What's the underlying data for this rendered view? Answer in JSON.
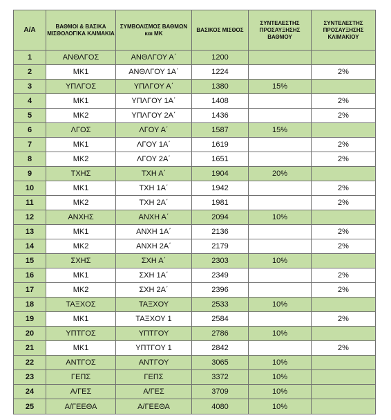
{
  "headers": {
    "aa": "Α/Α",
    "grade": "ΒΑΘΜΟΙ & ΒΑΣΙΚΑ ΜΙΣΘΟΛΟΓΙΚΑ ΚΛΙΜΑΚΙΑ",
    "symbol": "ΣΥΜΒΟΛΙΣΜΟΣ ΒΑΘΜΩΝ και ΜΚ",
    "salary": "ΒΑΣΙΚΟΣ ΜΙΣΘΟΣ",
    "grade_coef": "ΣΥΝΤΕΛΕΣΤΗΣ ΠΡΟΣΑΥΞΗΣΗΣ ΒΑΘΜΟΥ",
    "step_coef": "ΣΥΝΤΕΛΕΣΤΗΣ ΠΡΟΣΑΥΞΗΣΗΣ ΚΛΙΜΑΚΙΟΥ"
  },
  "rows": [
    {
      "n": "1",
      "grade": "ΑΝΘΛΓΟΣ",
      "symbol": "ΑΝΘΛΓΟΥ Α΄",
      "salary": "1200",
      "gc": "",
      "sc": "",
      "green": true
    },
    {
      "n": "2",
      "grade": "ΜΚ1",
      "symbol": "ΑΝΘΛΓΟΥ 1Α΄",
      "salary": "1224",
      "gc": "",
      "sc": "2%",
      "green": false
    },
    {
      "n": "3",
      "grade": "ΥΠΛΓΟΣ",
      "symbol": "ΥΠΛΓΟΥ Α΄",
      "salary": "1380",
      "gc": "15%",
      "sc": "",
      "green": true
    },
    {
      "n": "4",
      "grade": "ΜΚ1",
      "symbol": "ΥΠΛΓΟΥ 1Α΄",
      "salary": "1408",
      "gc": "",
      "sc": "2%",
      "green": false
    },
    {
      "n": "5",
      "grade": "ΜΚ2",
      "symbol": "ΥΠΛΓΟΥ 2Α΄",
      "salary": "1436",
      "gc": "",
      "sc": "2%",
      "green": false
    },
    {
      "n": "6",
      "grade": "ΛΓΟΣ",
      "symbol": "ΛΓΟΥ Α΄",
      "salary": "1587",
      "gc": "15%",
      "sc": "",
      "green": true
    },
    {
      "n": "7",
      "grade": "ΜΚ1",
      "symbol": "ΛΓΟΥ 1Α΄",
      "salary": "1619",
      "gc": "",
      "sc": "2%",
      "green": false
    },
    {
      "n": "8",
      "grade": "ΜΚ2",
      "symbol": "ΛΓΟΥ 2Α΄",
      "salary": "1651",
      "gc": "",
      "sc": "2%",
      "green": false
    },
    {
      "n": "9",
      "grade": "ΤΧΗΣ",
      "symbol": "ΤΧΗ Α΄",
      "salary": "1904",
      "gc": "20%",
      "sc": "",
      "green": true
    },
    {
      "n": "10",
      "grade": "ΜΚ1",
      "symbol": "ΤΧΗ 1Α΄",
      "salary": "1942",
      "gc": "",
      "sc": "2%",
      "green": false
    },
    {
      "n": "11",
      "grade": "ΜΚ2",
      "symbol": "ΤΧΗ 2Α΄",
      "salary": "1981",
      "gc": "",
      "sc": "2%",
      "green": false
    },
    {
      "n": "12",
      "grade": "ΑΝΧΗΣ",
      "symbol": "ΑΝΧΗ Α΄",
      "salary": "2094",
      "gc": "10%",
      "sc": "",
      "green": true
    },
    {
      "n": "13",
      "grade": "ΜΚ1",
      "symbol": "ΑΝΧΗ 1Α΄",
      "salary": "2136",
      "gc": "",
      "sc": "2%",
      "green": false
    },
    {
      "n": "14",
      "grade": "ΜΚ2",
      "symbol": "ΑΝΧΗ 2Α΄",
      "salary": "2179",
      "gc": "",
      "sc": "2%",
      "green": false
    },
    {
      "n": "15",
      "grade": "ΣΧΗΣ",
      "symbol": "ΣΧΗ Α΄",
      "salary": "2303",
      "gc": "10%",
      "sc": "",
      "green": true
    },
    {
      "n": "16",
      "grade": "ΜΚ1",
      "symbol": "ΣΧΗ 1Α΄",
      "salary": "2349",
      "gc": "",
      "sc": "2%",
      "green": false
    },
    {
      "n": "17",
      "grade": "ΜΚ2",
      "symbol": "ΣΧΗ 2Α΄",
      "salary": "2396",
      "gc": "",
      "sc": "2%",
      "green": false
    },
    {
      "n": "18",
      "grade": "ΤΑΞΧΟΣ",
      "symbol": "ΤΑΞΧΟΥ",
      "salary": "2533",
      "gc": "10%",
      "sc": "",
      "green": true
    },
    {
      "n": "19",
      "grade": "ΜΚ1",
      "symbol": "ΤΑΞΧΟΥ 1",
      "salary": "2584",
      "gc": "",
      "sc": "2%",
      "green": false
    },
    {
      "n": "20",
      "grade": "ΥΠΤΓΟΣ",
      "symbol": "ΥΠΤΓΟΥ",
      "salary": "2786",
      "gc": "10%",
      "sc": "",
      "green": true
    },
    {
      "n": "21",
      "grade": "ΜΚ1",
      "symbol": "ΥΠΤΓΟΥ 1",
      "salary": "2842",
      "gc": "",
      "sc": "2%",
      "green": false
    },
    {
      "n": "22",
      "grade": "ΑΝΤΓΟΣ",
      "symbol": "ΑΝΤΓΟΥ",
      "salary": "3065",
      "gc": "10%",
      "sc": "",
      "green": true
    },
    {
      "n": "23",
      "grade": "ΓΕΠΣ",
      "symbol": "ΓΕΠΣ",
      "salary": "3372",
      "gc": "10%",
      "sc": "",
      "green": true
    },
    {
      "n": "24",
      "grade": "Α/ΓΕΣ",
      "symbol": "Α/ΓΕΣ",
      "salary": "3709",
      "gc": "10%",
      "sc": "",
      "green": true
    },
    {
      "n": "25",
      "grade": "Α/ΓΕΕΘΑ",
      "symbol": "Α/ΓΕΕΘΑ",
      "salary": "4080",
      "gc": "10%",
      "sc": "",
      "green": true
    }
  ],
  "colors": {
    "green": "#c5dea6",
    "border": "#6f6f6f"
  }
}
